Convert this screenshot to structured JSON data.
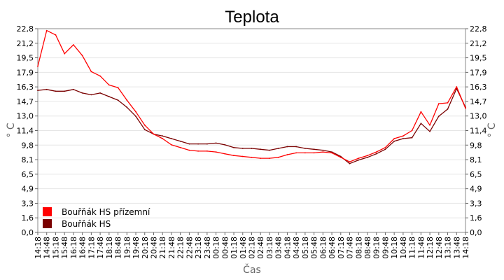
{
  "chart_data": {
    "type": "line",
    "title": "Teplota",
    "xlabel": "Čas",
    "ylabel": "° C",
    "y_ticks": [
      "0,0",
      "1,6",
      "3,3",
      "4,9",
      "6,5",
      "8,1",
      "9,8",
      "11,4",
      "13,0",
      "14,7",
      "16,3",
      "17,9",
      "19,5",
      "21,2",
      "22,8"
    ],
    "ylim": [
      0,
      22.8
    ],
    "grid": true,
    "legend_position": "bottom-left",
    "x_hours": [
      14.3,
      14.8,
      15.3,
      15.8,
      16.3,
      16.8,
      17.3,
      17.8,
      18.3,
      18.8,
      19.3,
      19.8,
      20.3,
      20.8,
      21.3,
      21.8,
      22.3,
      22.8,
      23.3,
      23.8,
      24.3,
      24.8,
      25.3,
      25.8,
      26.3,
      26.8,
      27.3,
      27.8,
      28.3,
      28.8,
      29.3,
      29.8,
      30.3,
      30.8,
      31.3,
      31.8,
      32.3,
      32.8,
      33.3,
      33.8,
      34.3,
      34.8,
      35.3,
      35.8,
      36.3,
      36.8,
      37.3,
      37.8,
      38.3
    ],
    "x_tick_labels": [
      "14:18",
      "14:48",
      "15:18",
      "15:48",
      "16:18",
      "16:48",
      "17:18",
      "17:48",
      "18:18",
      "18:48",
      "19:18",
      "19:48",
      "20:18",
      "20:48",
      "21:18",
      "21:48",
      "22:18",
      "22:48",
      "23:18",
      "23:48",
      "00:18",
      "00:48",
      "01:18",
      "01:48",
      "02:18",
      "02:48",
      "03:18",
      "03:48",
      "04:18",
      "04:48",
      "05:18",
      "05:48",
      "06:18",
      "06:48",
      "07:18",
      "07:48",
      "08:18",
      "08:48",
      "09:18",
      "09:48",
      "10:18",
      "10:48",
      "11:18",
      "11:48",
      "12:18",
      "12:48",
      "13:18",
      "13:48",
      "14:18"
    ],
    "series": [
      {
        "name": "Bouřňák HS přízemní",
        "color": "#ff0000",
        "values": [
          18.6,
          22.6,
          22.1,
          20.0,
          21.0,
          19.8,
          18.0,
          17.5,
          16.5,
          16.2,
          14.8,
          13.5,
          12.0,
          11.0,
          10.5,
          9.8,
          9.5,
          9.2,
          9.1,
          9.1,
          9.0,
          8.8,
          8.6,
          8.5,
          8.4,
          8.3,
          8.3,
          8.4,
          8.7,
          8.9,
          8.9,
          8.9,
          9.0,
          8.9,
          8.4,
          7.9,
          8.3,
          8.6,
          9.0,
          9.5,
          10.5,
          10.8,
          11.4,
          13.5,
          12.0,
          14.4,
          14.5,
          16.3,
          13.9
        ]
      },
      {
        "name": "Bouřňák HS",
        "color": "#7a0000",
        "values": [
          15.9,
          16.0,
          15.8,
          15.8,
          16.0,
          15.6,
          15.4,
          15.6,
          15.2,
          14.8,
          14.0,
          13.0,
          11.5,
          11.0,
          10.8,
          10.5,
          10.2,
          9.9,
          9.9,
          9.9,
          10.0,
          9.8,
          9.5,
          9.4,
          9.4,
          9.3,
          9.2,
          9.4,
          9.6,
          9.6,
          9.4,
          9.3,
          9.2,
          9.0,
          8.5,
          7.7,
          8.1,
          8.4,
          8.8,
          9.3,
          10.2,
          10.5,
          10.6,
          12.2,
          11.3,
          13.0,
          13.8,
          16.1,
          14.0
        ]
      }
    ]
  }
}
